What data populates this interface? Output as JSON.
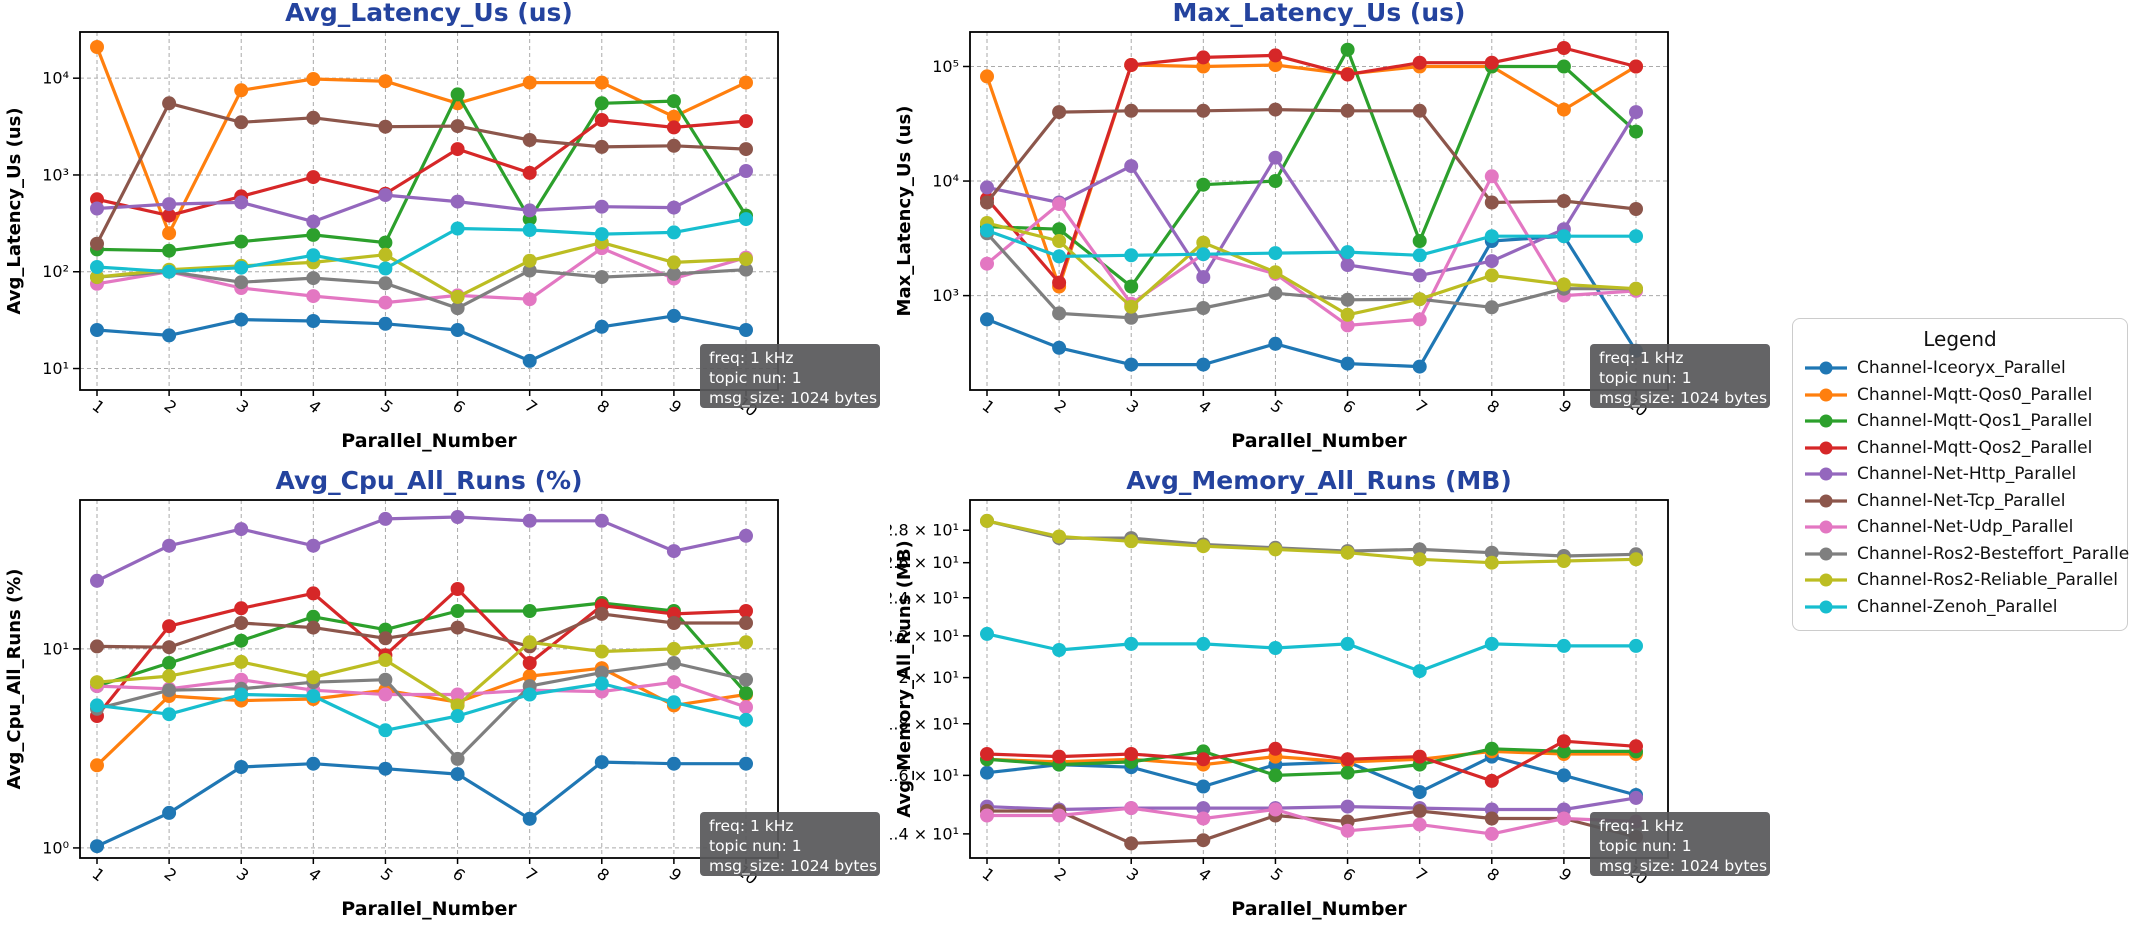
{
  "figure": {
    "background": "#ffffff",
    "title_color": "#24439e",
    "axis_color": "#000000",
    "grid_color": "#aaaaaa",
    "xlabel": "Parallel_Number",
    "annotation": {
      "lines": [
        "freq: 1 kHz",
        "topic nun: 1",
        "msg_size: 1024 bytes"
      ],
      "bg": "#58585a",
      "text_color": "#ffffff"
    }
  },
  "legend": {
    "title": "Legend",
    "entries": [
      {
        "label": "Channel-Iceoryx_Parallel",
        "color": "#1f77b4"
      },
      {
        "label": "Channel-Mqtt-Qos0_Parallel",
        "color": "#ff7f0e"
      },
      {
        "label": "Channel-Mqtt-Qos1_Parallel",
        "color": "#2ca02c"
      },
      {
        "label": "Channel-Mqtt-Qos2_Parallel",
        "color": "#d62728"
      },
      {
        "label": "Channel-Net-Http_Parallel",
        "color": "#9467bd"
      },
      {
        "label": "Channel-Net-Tcp_Parallel",
        "color": "#8c564b"
      },
      {
        "label": "Channel-Net-Udp_Parallel",
        "color": "#e377c2"
      },
      {
        "label": "Channel-Ros2-Besteffort_Parallel",
        "color": "#7f7f7f"
      },
      {
        "label": "Channel-Ros2-Reliable_Parallel",
        "color": "#bcbd22"
      },
      {
        "label": "Channel-Zenoh_Parallel",
        "color": "#17becf"
      }
    ]
  },
  "chart_data": [
    {
      "type": "line",
      "title": "Avg_Latency_Us  (us)",
      "ylabel": "Avg_Latency_Us (us)",
      "xlabel": "Parallel_Number",
      "log_y": true,
      "ylim": [
        6,
        30000
      ],
      "yticks": [
        {
          "value": 10,
          "label": "10¹"
        },
        {
          "value": 100,
          "label": "10²"
        },
        {
          "value": 1000,
          "label": "10³"
        },
        {
          "value": 10000,
          "label": "10⁴"
        }
      ],
      "grid_y": true,
      "x": [
        1,
        2,
        3,
        4,
        5,
        6,
        7,
        8,
        9,
        10
      ],
      "xtick_labels": [
        "1",
        "2",
        "3",
        "4",
        "5",
        "6",
        "7",
        "8",
        "9",
        "10"
      ],
      "series": [
        {
          "name": "Channel-Iceoryx_Parallel",
          "color": "#1f77b4",
          "values": [
            25,
            22,
            32,
            31,
            29,
            25,
            12,
            27,
            35,
            25
          ]
        },
        {
          "name": "Channel-Mqtt-Qos0_Parallel",
          "color": "#ff7f0e",
          "values": [
            21000,
            250,
            7500,
            9800,
            9300,
            5500,
            9000,
            9000,
            4000,
            9000
          ]
        },
        {
          "name": "Channel-Mqtt-Qos1_Parallel",
          "color": "#2ca02c",
          "values": [
            170,
            165,
            205,
            240,
            200,
            6800,
            350,
            5500,
            5800,
            380
          ]
        },
        {
          "name": "Channel-Mqtt-Qos2_Parallel",
          "color": "#d62728",
          "values": [
            560,
            380,
            600,
            950,
            640,
            1850,
            1050,
            3700,
            3100,
            3600
          ]
        },
        {
          "name": "Channel-Net-Http_Parallel",
          "color": "#9467bd",
          "values": [
            450,
            500,
            520,
            330,
            620,
            530,
            430,
            470,
            460,
            1100
          ]
        },
        {
          "name": "Channel-Net-Tcp_Parallel",
          "color": "#8c564b",
          "values": [
            195,
            5500,
            3500,
            3900,
            3150,
            3200,
            2300,
            1950,
            2000,
            1850
          ]
        },
        {
          "name": "Channel-Net-Udp_Parallel",
          "color": "#e377c2",
          "values": [
            75,
            100,
            68,
            56,
            48,
            57,
            52,
            175,
            85,
            140
          ]
        },
        {
          "name": "Channel-Ros2-Besteffort_Parallel",
          "color": "#7f7f7f",
          "values": [
            88,
            100,
            78,
            86,
            76,
            42,
            103,
            88,
            95,
            105
          ]
        },
        {
          "name": "Channel-Ros2-Reliable_Parallel",
          "color": "#bcbd22",
          "values": [
            88,
            105,
            115,
            125,
            150,
            55,
            130,
            200,
            125,
            135
          ]
        },
        {
          "name": "Channel-Zenoh_Parallel",
          "color": "#17becf",
          "values": [
            112,
            100,
            110,
            148,
            108,
            280,
            270,
            245,
            255,
            350
          ]
        }
      ]
    },
    {
      "type": "line",
      "title": "Max_Latency_Us  (us)",
      "ylabel": "Max_Latency_Us (us)",
      "xlabel": "Parallel_Number",
      "log_y": true,
      "ylim": [
        150,
        200000
      ],
      "yticks": [
        {
          "value": 1000,
          "label": "10³"
        },
        {
          "value": 10000,
          "label": "10⁴"
        },
        {
          "value": 100000,
          "label": "10⁵"
        }
      ],
      "grid_y": true,
      "x": [
        1,
        2,
        3,
        4,
        5,
        6,
        7,
        8,
        9,
        10
      ],
      "xtick_labels": [
        "1",
        "2",
        "3",
        "4",
        "5",
        "6",
        "7",
        "8",
        "9",
        "10"
      ],
      "series": [
        {
          "name": "Channel-Iceoryx_Parallel",
          "color": "#1f77b4",
          "values": [
            620,
            350,
            250,
            250,
            380,
            255,
            240,
            3000,
            3300,
            330
          ]
        },
        {
          "name": "Channel-Mqtt-Qos0_Parallel",
          "color": "#ff7f0e",
          "values": [
            82000,
            1200,
            103000,
            100000,
            103000,
            86000,
            100000,
            100000,
            42000,
            100000
          ]
        },
        {
          "name": "Channel-Mqtt-Qos1_Parallel",
          "color": "#2ca02c",
          "values": [
            4000,
            3800,
            1200,
            9300,
            10000,
            140000,
            3000,
            100000,
            100000,
            27000
          ]
        },
        {
          "name": "Channel-Mqtt-Qos2_Parallel",
          "color": "#d62728",
          "values": [
            7000,
            1300,
            103000,
            120000,
            125000,
            85000,
            108000,
            108000,
            145000,
            100000
          ]
        },
        {
          "name": "Channel-Net-Http_Parallel",
          "color": "#9467bd",
          "values": [
            8800,
            6500,
            13500,
            1450,
            16000,
            1850,
            1500,
            2000,
            3800,
            40000
          ]
        },
        {
          "name": "Channel-Net-Tcp_Parallel",
          "color": "#8c564b",
          "values": [
            6500,
            40000,
            41000,
            41000,
            42000,
            41000,
            41000,
            6500,
            6700,
            5700
          ]
        },
        {
          "name": "Channel-Net-Udp_Parallel",
          "color": "#e377c2",
          "values": [
            1900,
            6300,
            850,
            2300,
            1550,
            550,
            620,
            11000,
            1000,
            1100
          ]
        },
        {
          "name": "Channel-Ros2-Besteffort_Parallel",
          "color": "#7f7f7f",
          "values": [
            3500,
            700,
            640,
            780,
            1050,
            920,
            930,
            790,
            1150,
            1150
          ]
        },
        {
          "name": "Channel-Ros2-Reliable_Parallel",
          "color": "#bcbd22",
          "values": [
            4300,
            3000,
            800,
            2900,
            1600,
            680,
            930,
            1500,
            1250,
            1150
          ]
        },
        {
          "name": "Channel-Zenoh_Parallel",
          "color": "#17becf",
          "values": [
            3700,
            2200,
            2250,
            2300,
            2350,
            2400,
            2250,
            3300,
            3300,
            3300
          ]
        }
      ]
    },
    {
      "type": "line",
      "title": "Avg_Cpu_All_Runs  (%)",
      "ylabel": "Avg_Cpu_All_Runs (%)",
      "xlabel": "Parallel_Number",
      "log_y": true,
      "ylim": [
        0.89,
        56
      ],
      "yticks": [
        {
          "value": 1,
          "label": "10⁰"
        },
        {
          "value": 10,
          "label": "10¹"
        }
      ],
      "grid_y": true,
      "x": [
        1,
        2,
        3,
        4,
        5,
        6,
        7,
        8,
        9,
        10
      ],
      "xtick_labels": [
        "1",
        "2",
        "3",
        "4",
        "5",
        "6",
        "7",
        "8",
        "9",
        "10"
      ],
      "series": [
        {
          "name": "Channel-Iceoryx_Parallel",
          "color": "#1f77b4",
          "values": [
            1.02,
            1.5,
            2.55,
            2.65,
            2.5,
            2.35,
            1.4,
            2.7,
            2.65,
            2.65
          ]
        },
        {
          "name": "Channel-Mqtt-Qos0_Parallel",
          "color": "#ff7f0e",
          "values": [
            2.6,
            5.8,
            5.5,
            5.6,
            6.2,
            5.4,
            7.3,
            8.0,
            5.2,
            5.9
          ]
        },
        {
          "name": "Channel-Mqtt-Qos1_Parallel",
          "color": "#2ca02c",
          "values": [
            6.5,
            8.5,
            11,
            14.5,
            12.5,
            15.5,
            15.5,
            17,
            15.5,
            6.0
          ]
        },
        {
          "name": "Channel-Mqtt-Qos2_Parallel",
          "color": "#d62728",
          "values": [
            4.6,
            13,
            16,
            19,
            9.3,
            20,
            8.5,
            16.5,
            15,
            15.5
          ]
        },
        {
          "name": "Channel-Net-Http_Parallel",
          "color": "#9467bd",
          "values": [
            22,
            33,
            40,
            33,
            45,
            46,
            44,
            44,
            31,
            37
          ]
        },
        {
          "name": "Channel-Net-Tcp_Parallel",
          "color": "#8c564b",
          "values": [
            10.3,
            10.2,
            13.5,
            12.8,
            11.3,
            12.8,
            10.3,
            15,
            13.5,
            13.5
          ]
        },
        {
          "name": "Channel-Net-Udp_Parallel",
          "color": "#e377c2",
          "values": [
            6.5,
            6.3,
            7.0,
            6.2,
            5.9,
            5.9,
            6.2,
            6.1,
            6.8,
            5.1
          ]
        },
        {
          "name": "Channel-Ros2-Besteffort_Parallel",
          "color": "#7f7f7f",
          "values": [
            5.0,
            6.2,
            6.3,
            6.8,
            7.0,
            2.8,
            6.5,
            7.6,
            8.5,
            7.0
          ]
        },
        {
          "name": "Channel-Ros2-Reliable_Parallel",
          "color": "#bcbd22",
          "values": [
            6.8,
            7.3,
            8.6,
            7.2,
            8.8,
            5.2,
            10.8,
            9.7,
            10,
            10.8
          ]
        },
        {
          "name": "Channel-Zenoh_Parallel",
          "color": "#17becf",
          "values": [
            5.2,
            4.7,
            5.9,
            5.8,
            3.9,
            4.6,
            5.9,
            6.7,
            5.4,
            4.4
          ]
        }
      ]
    },
    {
      "type": "line",
      "title": "Avg_Memory_All_Runs  (MB)",
      "ylabel": "Avg_Memory_All_Runs (MB)",
      "xlabel": "Parallel_Number",
      "log_y": true,
      "ylim": [
        13.25,
        30
      ],
      "yticks": [
        {
          "value": 14,
          "label": "1.4 × 10¹"
        },
        {
          "value": 16,
          "label": "1.6 × 10¹"
        },
        {
          "value": 18,
          "label": "1.8 × 10¹"
        },
        {
          "value": 20,
          "label": "2 × 10¹"
        },
        {
          "value": 22,
          "label": "2.2 × 10¹"
        },
        {
          "value": 24,
          "label": "2.4 × 10¹"
        },
        {
          "value": 26,
          "label": "2.6 × 10¹"
        },
        {
          "value": 28,
          "label": "2.8 × 10¹"
        }
      ],
      "grid_y": false,
      "x": [
        1,
        2,
        3,
        4,
        5,
        6,
        7,
        8,
        9,
        10
      ],
      "xtick_labels": [
        "1",
        "2",
        "3",
        "4",
        "5",
        "6",
        "7",
        "8",
        "9",
        "10"
      ],
      "series": [
        {
          "name": "Channel-Iceoryx_Parallel",
          "color": "#1f77b4",
          "values": [
            16.1,
            16.4,
            16.3,
            15.6,
            16.4,
            16.5,
            15.4,
            16.7,
            16.0,
            15.3
          ]
        },
        {
          "name": "Channel-Mqtt-Qos0_Parallel",
          "color": "#ff7f0e",
          "values": [
            16.6,
            16.5,
            16.6,
            16.4,
            16.7,
            16.5,
            16.6,
            16.9,
            16.8,
            16.8
          ]
        },
        {
          "name": "Channel-Mqtt-Qos1_Parallel",
          "color": "#2ca02c",
          "values": [
            16.6,
            16.4,
            16.5,
            16.9,
            16.0,
            16.1,
            16.4,
            17.0,
            16.9,
            16.9
          ]
        },
        {
          "name": "Channel-Mqtt-Qos2_Parallel",
          "color": "#d62728",
          "values": [
            16.8,
            16.7,
            16.8,
            16.6,
            17.0,
            16.6,
            16.7,
            15.8,
            17.3,
            17.1
          ]
        },
        {
          "name": "Channel-Net-Http_Parallel",
          "color": "#9467bd",
          "values": [
            14.9,
            14.8,
            14.85,
            14.85,
            14.85,
            14.9,
            14.85,
            14.8,
            14.8,
            15.2
          ]
        },
        {
          "name": "Channel-Net-Tcp_Parallel",
          "color": "#8c564b",
          "values": [
            14.75,
            14.75,
            13.7,
            13.8,
            14.6,
            14.4,
            14.75,
            14.5,
            14.5,
            13.9
          ]
        },
        {
          "name": "Channel-Net-Udp_Parallel",
          "color": "#e377c2",
          "values": [
            14.6,
            14.6,
            14.85,
            14.5,
            14.8,
            14.1,
            14.3,
            14.0,
            14.5,
            14.4
          ]
        },
        {
          "name": "Channel-Ros2-Besteffort_Parallel",
          "color": "#7f7f7f",
          "values": [
            28.6,
            27.5,
            27.5,
            27.1,
            26.9,
            26.7,
            26.8,
            26.6,
            26.4,
            26.5
          ]
        },
        {
          "name": "Channel-Ros2-Reliable_Parallel",
          "color": "#bcbd22",
          "values": [
            28.6,
            27.6,
            27.3,
            27.0,
            26.8,
            26.6,
            26.2,
            26.0,
            26.1,
            26.2
          ]
        },
        {
          "name": "Channel-Zenoh_Parallel",
          "color": "#17becf",
          "values": [
            22.1,
            21.3,
            21.6,
            21.6,
            21.4,
            21.6,
            20.3,
            21.6,
            21.5,
            21.5
          ]
        }
      ]
    }
  ]
}
